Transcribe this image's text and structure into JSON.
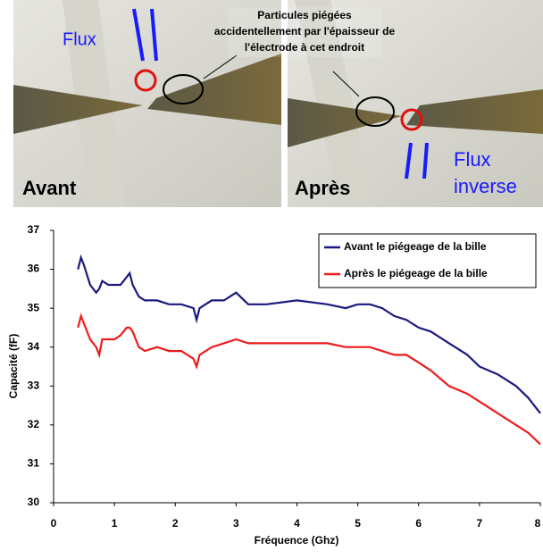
{
  "photos": [
    {
      "label": "Avant"
    },
    {
      "label": "Après"
    }
  ],
  "annotations": {
    "flux": "Flux",
    "note": [
      "Particules piégées",
      "accidentellement par l'épaisseur de",
      "l'électrode à cet endroit"
    ],
    "flux_inverse": [
      "Flux",
      "inverse"
    ]
  },
  "chart_data": {
    "type": "line",
    "x_label": "Fréquence (Ghz)",
    "y_label": "Capacité (fF)",
    "x": [
      0.4,
      0.45,
      0.5,
      0.6,
      0.7,
      0.75,
      0.8,
      0.9,
      1.0,
      1.1,
      1.2,
      1.25,
      1.3,
      1.4,
      1.5,
      1.7,
      1.9,
      2.1,
      2.3,
      2.35,
      2.4,
      2.6,
      2.8,
      3.0,
      3.2,
      3.5,
      4.0,
      4.5,
      4.8,
      5.0,
      5.2,
      5.4,
      5.6,
      5.8,
      6.0,
      6.2,
      6.5,
      6.8,
      7.0,
      7.3,
      7.6,
      7.8,
      8.0
    ],
    "series": [
      {
        "name": "Avant le piégeage de la bille",
        "color": "#1a1a80",
        "values": [
          36.0,
          36.3,
          36.1,
          35.6,
          35.4,
          35.5,
          35.7,
          35.6,
          35.6,
          35.6,
          35.8,
          35.9,
          35.6,
          35.3,
          35.2,
          35.2,
          35.1,
          35.1,
          35.0,
          34.7,
          35.0,
          35.2,
          35.2,
          35.4,
          35.1,
          35.1,
          35.2,
          35.1,
          35.0,
          35.1,
          35.1,
          35.0,
          34.8,
          34.7,
          34.5,
          34.4,
          34.1,
          33.8,
          33.5,
          33.3,
          33.0,
          32.7,
          32.3
        ]
      },
      {
        "name": "Après le piégeage de la bille",
        "color": "#ee1c1c",
        "values": [
          34.5,
          34.8,
          34.6,
          34.2,
          34.0,
          33.8,
          34.2,
          34.2,
          34.2,
          34.3,
          34.5,
          34.5,
          34.4,
          34.0,
          33.9,
          34.0,
          33.9,
          33.9,
          33.7,
          33.5,
          33.8,
          34.0,
          34.1,
          34.2,
          34.1,
          34.1,
          34.1,
          34.1,
          34.0,
          34.0,
          34.0,
          33.9,
          33.8,
          33.8,
          33.6,
          33.4,
          33.0,
          32.8,
          32.6,
          32.3,
          32.0,
          31.8,
          31.5
        ]
      }
    ],
    "xlim": [
      0,
      8
    ],
    "xticks": [
      0,
      1,
      2,
      3,
      4,
      5,
      6,
      7,
      8
    ],
    "ylim": [
      30,
      37
    ],
    "yticks": [
      30,
      31,
      32,
      33,
      34,
      35,
      36,
      37
    ],
    "legend": "top-right"
  }
}
